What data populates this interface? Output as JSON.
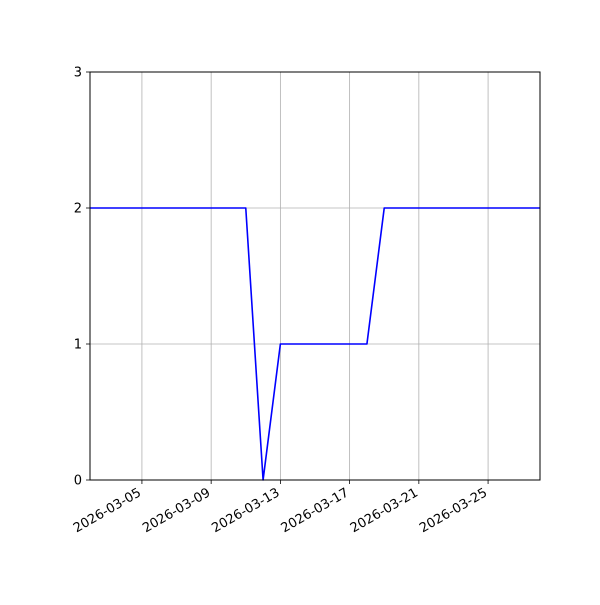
{
  "chart_data": {
    "type": "line",
    "title": "",
    "xlabel": "",
    "ylabel": "",
    "x_axis_type": "date",
    "xlim": [
      "2026-03-02",
      "2026-03-28"
    ],
    "ylim": [
      0,
      3
    ],
    "x_ticks": [
      "2026-03-05",
      "2026-03-09",
      "2026-03-13",
      "2026-03-17",
      "2026-03-21",
      "2026-03-25"
    ],
    "y_ticks": [
      0,
      1,
      2,
      3
    ],
    "grid": true,
    "legend": "none",
    "series": [
      {
        "color": "#0000ff",
        "points": [
          {
            "x": "2026-03-02",
            "y": 2
          },
          {
            "x": "2026-03-03",
            "y": 2
          },
          {
            "x": "2026-03-04",
            "y": 2
          },
          {
            "x": "2026-03-05",
            "y": 2
          },
          {
            "x": "2026-03-06",
            "y": 2
          },
          {
            "x": "2026-03-07",
            "y": 2
          },
          {
            "x": "2026-03-08",
            "y": 2
          },
          {
            "x": "2026-03-09",
            "y": 2
          },
          {
            "x": "2026-03-10",
            "y": 2
          },
          {
            "x": "2026-03-11",
            "y": 2
          },
          {
            "x": "2026-03-12",
            "y": 0
          },
          {
            "x": "2026-03-13",
            "y": 1
          },
          {
            "x": "2026-03-14",
            "y": 1
          },
          {
            "x": "2026-03-15",
            "y": 1
          },
          {
            "x": "2026-03-16",
            "y": 1
          },
          {
            "x": "2026-03-17",
            "y": 1
          },
          {
            "x": "2026-03-18",
            "y": 1
          },
          {
            "x": "2026-03-19",
            "y": 2
          },
          {
            "x": "2026-03-20",
            "y": 2
          },
          {
            "x": "2026-03-21",
            "y": 2
          },
          {
            "x": "2026-03-22",
            "y": 2
          },
          {
            "x": "2026-03-23",
            "y": 2
          },
          {
            "x": "2026-03-24",
            "y": 2
          },
          {
            "x": "2026-03-25",
            "y": 2
          },
          {
            "x": "2026-03-26",
            "y": 2
          },
          {
            "x": "2026-03-27",
            "y": 2
          },
          {
            "x": "2026-03-28",
            "y": 2
          }
        ]
      }
    ]
  }
}
